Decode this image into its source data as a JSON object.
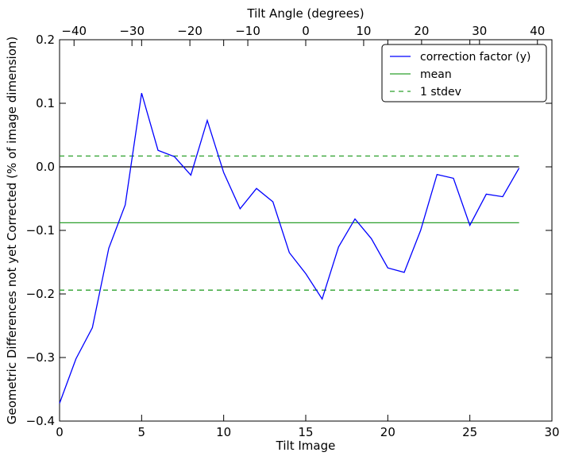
{
  "chart_data": {
    "type": "line",
    "xlabel": "Tilt Image",
    "ylabel": "Geometric Differences not yet Corrected (% of image dimension)",
    "top_xlabel": "Tilt Angle (degrees)",
    "xlim": [
      0,
      30
    ],
    "ylim": [
      -0.4,
      0.2
    ],
    "top_xlim": [
      -42.5,
      42.5
    ],
    "x_ticks": [
      0,
      5,
      10,
      15,
      20,
      25,
      30
    ],
    "x_tick_labels": [
      "0",
      "5",
      "10",
      "15",
      "20",
      "25",
      "30"
    ],
    "y_ticks": [
      0.2,
      0.1,
      0.0,
      -0.1,
      -0.2,
      -0.3,
      -0.4
    ],
    "y_tick_labels": [
      "0.2",
      "0.1",
      "0.0",
      "−0.1",
      "−0.2",
      "−0.3",
      "−0.4"
    ],
    "top_ticks": [
      -40,
      -30,
      -20,
      -10,
      0,
      10,
      20,
      30,
      40
    ],
    "top_tick_labels": [
      "−40",
      "−30",
      "−20",
      "−10",
      "0",
      "10",
      "20",
      "30",
      "40"
    ],
    "grid": false,
    "legend_position": "top-right",
    "series": [
      {
        "name": "correction factor (y)",
        "color": "#0000ff",
        "style": "solid",
        "x": [
          0,
          1,
          2,
          3,
          4,
          5,
          6,
          7,
          8,
          9,
          10,
          11,
          12,
          13,
          14,
          15,
          16,
          17,
          18,
          19,
          20,
          21,
          22,
          23,
          24,
          25,
          26,
          27,
          28
        ],
        "values": [
          -0.372,
          -0.302,
          -0.253,
          -0.128,
          -0.06,
          0.116,
          0.026,
          0.016,
          -0.013,
          0.073,
          -0.009,
          -0.066,
          -0.034,
          -0.055,
          -0.135,
          -0.168,
          -0.208,
          -0.126,
          -0.082,
          -0.113,
          -0.159,
          -0.166,
          -0.1,
          -0.012,
          -0.018,
          -0.092,
          -0.043,
          -0.047,
          -0.002
        ]
      },
      {
        "name": "mean",
        "color": "#2ca02c",
        "style": "solid",
        "x": [
          0,
          28
        ],
        "values": [
          -0.088,
          -0.088
        ]
      },
      {
        "name": "1 stdev",
        "color": "#2ca02c",
        "style": "dashed",
        "x": [
          0,
          28
        ],
        "values": [
          0.017,
          0.017
        ]
      },
      {
        "name": "",
        "color": "#2ca02c",
        "style": "dashed",
        "x": [
          0,
          28
        ],
        "values": [
          -0.194,
          -0.194
        ]
      },
      {
        "name": "",
        "color": "#000000",
        "style": "solid",
        "x": [
          0,
          28
        ],
        "values": [
          0,
          0
        ]
      }
    ]
  }
}
